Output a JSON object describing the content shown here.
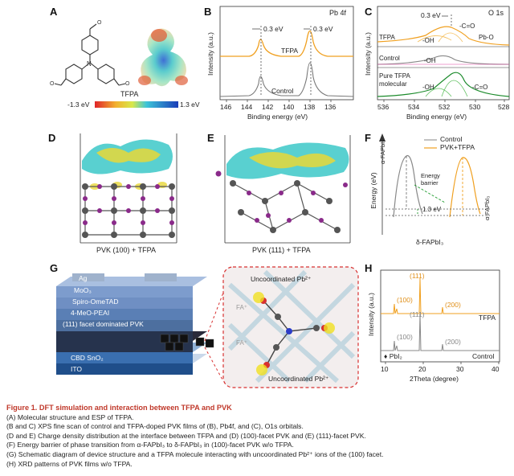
{
  "panels": {
    "A": {
      "label": "A",
      "molecule_name": "TFPA",
      "colorbar_min": "-1.3 eV",
      "colorbar_max": "1.3 eV",
      "colors": {
        "low": "#e0242a",
        "mid": "#3cc4d8",
        "high": "#1a3db8"
      }
    },
    "B": {
      "label": "B",
      "title": "Pb 4f",
      "ylabel": "Intensity (a.u.)",
      "xlabel": "Binding energy (eV)",
      "shift1": "0.3 eV",
      "shift2": "0.3 eV",
      "series_label_top": "TFPA",
      "series_label_bottom": "Control",
      "ticks": [
        "146",
        "144",
        "142",
        "140",
        "138",
        "136"
      ]
    },
    "C": {
      "label": "C",
      "title": "O 1s",
      "ylabel": "Intensity (a.u.)",
      "xlabel": "Binding energy (eV)",
      "shift": "0.3 eV",
      "row1_name": "TFPA",
      "row1_oh": "-OH",
      "row1_co": "-C=O",
      "row1_pbo": "Pb-O",
      "row2_name": "Control",
      "row2_oh": "-OH",
      "row3_name_1": "Pure TFPA",
      "row3_name_2": "molecular",
      "row3_oh": "-OH",
      "row3_co": "-C=O",
      "ticks": [
        "536",
        "534",
        "532",
        "530",
        "528"
      ]
    },
    "D": {
      "label": "D",
      "caption": "PVK (100) + TFPA"
    },
    "E": {
      "label": "E",
      "caption": "PVK (111) + TFPA"
    },
    "F": {
      "label": "F",
      "legend_control": "Control",
      "legend_tfpa": "PVK+TFPA",
      "ylabel": "Energy (eV)",
      "alpha_left": "α-FAPbI₃",
      "alpha_right": "α-FAPbI₃",
      "barrier": "Energy barrier",
      "delta_ev": "1.3 eV",
      "delta": "δ-FAPbI₃"
    },
    "G": {
      "label": "G",
      "layers": [
        "Ag",
        "MoO₃",
        "Spiro-OmeTAD",
        "4-MeO-PEAI",
        "(111) facet dominated PVK",
        "CBD SnO₂",
        "ITO"
      ],
      "pb_top": "Uncoordinated Pb²⁺",
      "pb_bottom": "Uncoordinated Pb²⁺",
      "fa1": "FA⁺",
      "fa2": "FA⁺"
    },
    "H": {
      "label": "H",
      "ylabel": "Intensity (a.u.)",
      "xlabel": "2Theta (degree)",
      "ticks": [
        "10",
        "20",
        "30",
        "40"
      ],
      "tfpa_peaks": [
        "(111)",
        "(100)",
        "(200)"
      ],
      "ctrl_peaks": [
        "(111)",
        "(100)",
        "(200)"
      ],
      "series_tfpa": "TFPA",
      "series_control": "Control",
      "pbi2": "PbI₂"
    }
  },
  "caption": {
    "title": "Figure 1.  DFT simulation and interaction between TFPA and PVK",
    "lines": [
      "(A) Molecular structure and ESP of TFPA.",
      "(B and C) XPS fine scan of control and TFPA-doped PVK films of (B), Pb4f, and (C), O1s orbitals.",
      "(D and E) Charge density distribution at the interface between TFPA and (D) (100)-facet PVK and (E) (111)-facet PVK.",
      "(F) Energy barrier of phase transition from α-FAPbI₃ to δ-FAPbI₃ in (100)-facet PVK w/o TFPA.",
      "(G) Schematic diagram of device structure and a TFPA molecule interacting with uncoordinated Pb²⁺ ions of the (100) facet.",
      "(H) XRD patterns of PVK films w/o TFPA."
    ]
  }
}
